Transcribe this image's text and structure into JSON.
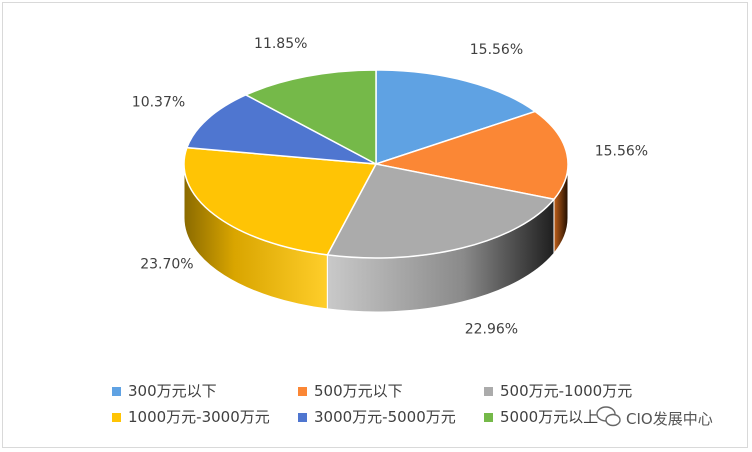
{
  "chart_data": {
    "type": "pie",
    "title": "",
    "categories": [
      "300万元以下",
      "500万元以下",
      "500万元-1000万元",
      "1000万元-3000万元",
      "3000万元-5000万元",
      "5000万元以上"
    ],
    "values": [
      15.56,
      15.56,
      22.96,
      23.7,
      10.37,
      11.85
    ],
    "labels": [
      "15.56%",
      "15.56%",
      "22.96%",
      "23.70%",
      "10.37%",
      "11.85%"
    ],
    "colors": [
      "#5fa2e3",
      "#fb8735",
      "#ababab",
      "#ffc405",
      "#4f76d0",
      "#75b949"
    ],
    "side_colors": [
      "#3c6fa3",
      "#b85d1d",
      "#7d7d7d",
      "#c99400",
      "#2f4f9a",
      "#4f8a2e"
    ],
    "legend": {
      "position": "bottom",
      "items": [
        "300万元以下",
        "500万元以下",
        "500万元-1000万元",
        "1000万元-3000万元",
        "3000万元-5000万元",
        "5000万元以上"
      ]
    },
    "style": "3d"
  },
  "watermark": {
    "text": "CIO发展中心",
    "icon": "wechat-icon"
  }
}
